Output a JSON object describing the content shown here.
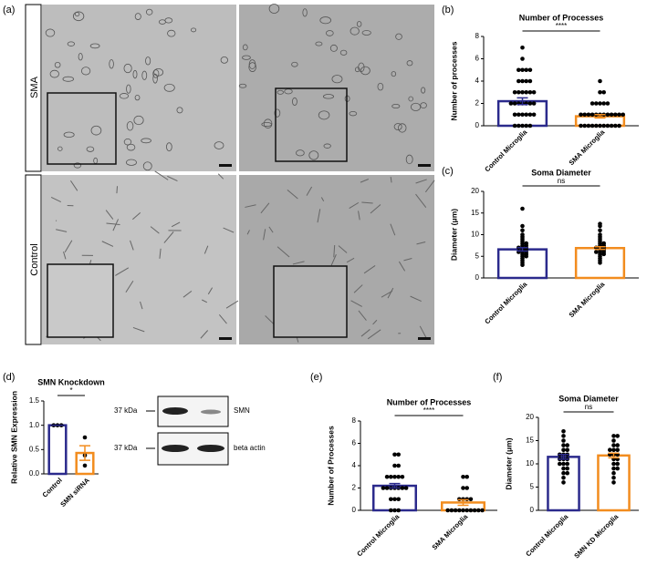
{
  "images": {
    "label": "(a)",
    "rows": [
      "SMA",
      "Control"
    ]
  },
  "blot": {
    "markers": [
      "37 kDa",
      "37 kDa"
    ],
    "bands": [
      "SMN",
      "beta actin"
    ]
  },
  "chart_data": [
    {
      "type": "bar",
      "label": "(b)",
      "title": "Number of  Processes",
      "ylabel": "Number of processes",
      "categories": [
        "Control Microglia",
        "SMA Microglia"
      ],
      "values": [
        2.2,
        0.85
      ],
      "errors": [
        0.3,
        0.15
      ],
      "colors": [
        "#2b2a8c",
        "#f28c1e"
      ],
      "ylim": [
        0,
        8
      ],
      "yticks": [
        0,
        2,
        4,
        6,
        8
      ],
      "significance": "****",
      "points": [
        [
          0,
          0,
          0,
          0,
          0,
          1,
          1,
          1,
          1,
          1,
          1,
          2,
          2,
          2,
          2,
          2,
          2,
          2,
          3,
          3,
          3,
          3,
          3,
          3,
          4,
          4,
          4,
          4,
          5,
          5,
          5,
          5,
          6,
          7
        ],
        [
          0,
          0,
          0,
          0,
          0,
          0,
          0,
          0,
          0,
          0,
          0,
          1,
          1,
          1,
          1,
          1,
          1,
          1,
          1,
          1,
          1,
          1,
          1,
          2,
          2,
          2,
          2,
          2,
          3,
          3,
          4
        ]
      ]
    },
    {
      "type": "bar",
      "label": "(c)",
      "title": "Soma Diameter",
      "ylabel": "Diameter (μm)",
      "categories": [
        "Control Microglia",
        "SMA Microglia"
      ],
      "values": [
        6.6,
        6.9
      ],
      "errors": [
        0.4,
        0.3
      ],
      "colors": [
        "#2b2a8c",
        "#f28c1e"
      ],
      "ylim": [
        0,
        20
      ],
      "yticks": [
        0,
        5,
        10,
        15,
        20
      ],
      "significance": "ns",
      "points": [
        [
          3,
          3.5,
          4,
          4.5,
          5,
          5,
          5.5,
          5.5,
          6,
          6,
          6,
          6.5,
          6.5,
          7,
          7,
          7,
          7.5,
          7.5,
          8,
          8,
          8.5,
          9,
          9.5,
          10,
          11,
          12,
          16
        ],
        [
          3.5,
          4,
          4.5,
          5,
          5.5,
          5.5,
          6,
          6,
          6,
          6.5,
          6.5,
          7,
          7,
          7,
          7.5,
          7.5,
          8,
          8,
          8.5,
          9,
          9.5,
          10,
          11,
          12,
          12.5
        ]
      ]
    },
    {
      "type": "bar",
      "label": "(d)",
      "title": "SMN Knockdown",
      "ylabel": "Relative SMN Expression",
      "categories": [
        "Control",
        "SMN siRNA"
      ],
      "values": [
        1.0,
        0.43
      ],
      "errors": [
        0,
        0.15
      ],
      "colors": [
        "#2b2a8c",
        "#f28c1e"
      ],
      "ylim": [
        0,
        1.5
      ],
      "yticks": [
        {
          "value": 0,
          "label": "0.0"
        },
        {
          "value": 0.5,
          "label": "0.5"
        },
        {
          "value": 1,
          "label": "1.0"
        },
        {
          "value": 1.5,
          "label": "1.5"
        }
      ],
      "significance": "*",
      "points": [
        [
          1,
          1,
          1
        ],
        [
          0.75,
          0.38,
          0.17
        ]
      ]
    },
    {
      "type": "bar",
      "label": "(e)",
      "title": "Number of  Processes",
      "ylabel": "Number of Processes",
      "categories": [
        "Control Microglia",
        "SMA Microglia"
      ],
      "values": [
        2.2,
        0.7
      ],
      "errors": [
        0.2,
        0.25
      ],
      "colors": [
        "#2b2a8c",
        "#f28c1e"
      ],
      "ylim": [
        0,
        8
      ],
      "yticks": [
        0,
        2,
        4,
        6,
        8
      ],
      "significance": "****",
      "points": [
        [
          0,
          0,
          0,
          1,
          1,
          1,
          2,
          2,
          2,
          2,
          2,
          2,
          2,
          3,
          3,
          3,
          3,
          3,
          4,
          4,
          5,
          5
        ],
        [
          0,
          0,
          0,
          0,
          0,
          0,
          0,
          0,
          0,
          0,
          1,
          1,
          1,
          1,
          2,
          2,
          3,
          3
        ]
      ]
    },
    {
      "type": "bar",
      "label": "(f)",
      "title": "Soma Diameter",
      "ylabel": "Diameter (μm)",
      "categories": [
        "Control Microglia",
        "SMN KD Microglia"
      ],
      "values": [
        11.5,
        11.8
      ],
      "errors": [
        0.5,
        0.5
      ],
      "colors": [
        "#2b2a8c",
        "#f28c1e"
      ],
      "ylim": [
        0,
        20
      ],
      "yticks": [
        0,
        5,
        10,
        15,
        20
      ],
      "significance": "ns",
      "points": [
        [
          6,
          7,
          8,
          8,
          9,
          9,
          10,
          10,
          10,
          11,
          11,
          11,
          12,
          12,
          12,
          13,
          13,
          14,
          14,
          15,
          16,
          17
        ],
        [
          6,
          7,
          8,
          9,
          9,
          10,
          10,
          11,
          11,
          12,
          12,
          12,
          13,
          13,
          13,
          14,
          14,
          15,
          16,
          16
        ]
      ]
    }
  ]
}
